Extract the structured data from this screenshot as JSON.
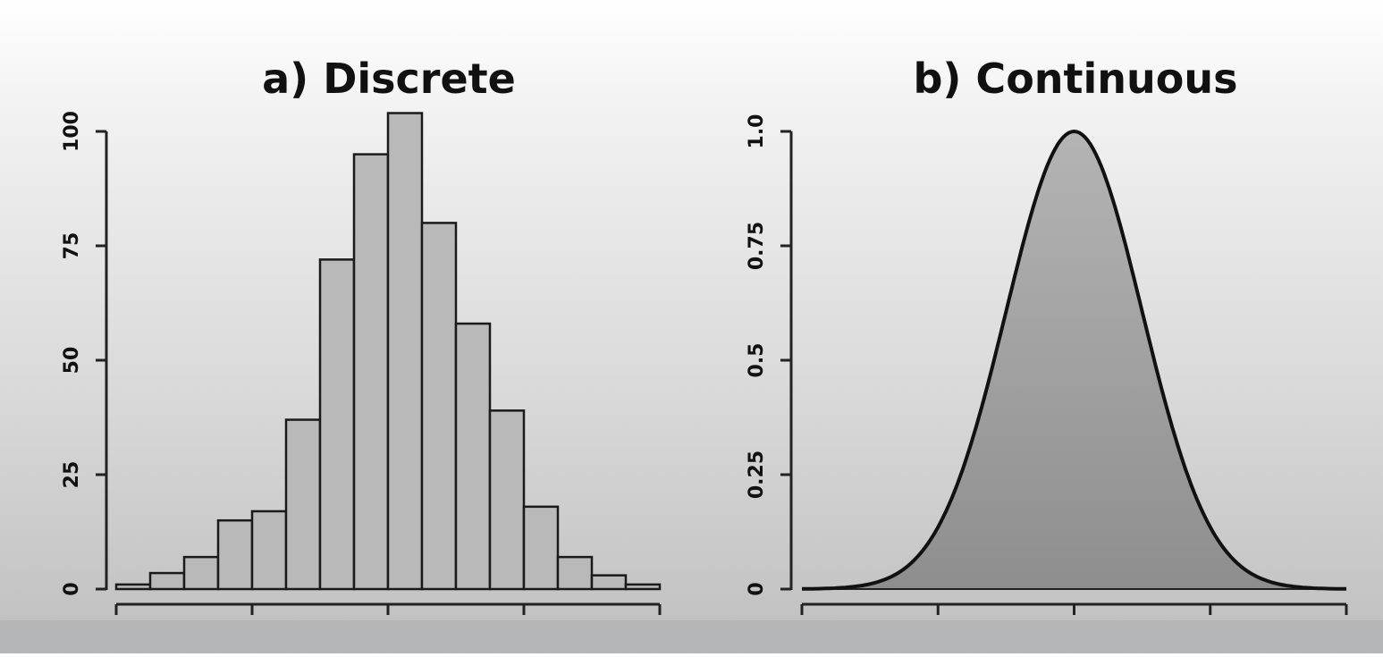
{
  "chart_data": [
    {
      "type": "bar",
      "title": "a) Discrete",
      "xlabel": "",
      "ylabel": "",
      "xlim": [
        -2,
        2
      ],
      "ylim": [
        0,
        100
      ],
      "x_ticks": [
        "-2",
        "-1",
        "0",
        "1",
        "2"
      ],
      "y_ticks": [
        "0",
        "25",
        "50",
        "75",
        "100"
      ],
      "bins": [
        {
          "x0": -2.0,
          "x1": -1.75,
          "value": 1
        },
        {
          "x0": -1.75,
          "x1": -1.5,
          "value": 3.5
        },
        {
          "x0": -1.5,
          "x1": -1.25,
          "value": 7
        },
        {
          "x0": -1.25,
          "x1": -1.0,
          "value": 15
        },
        {
          "x0": -1.0,
          "x1": -0.75,
          "value": 17
        },
        {
          "x0": -0.75,
          "x1": -0.5,
          "value": 37
        },
        {
          "x0": -0.5,
          "x1": -0.25,
          "value": 72
        },
        {
          "x0": -0.25,
          "x1": 0.0,
          "value": 95
        },
        {
          "x0": 0.0,
          "x1": 0.25,
          "value": 104
        },
        {
          "x0": 0.25,
          "x1": 0.5,
          "value": 80
        },
        {
          "x0": 0.5,
          "x1": 0.75,
          "value": 58
        },
        {
          "x0": 0.75,
          "x1": 1.0,
          "value": 39
        },
        {
          "x0": 1.0,
          "x1": 1.25,
          "value": 18
        },
        {
          "x0": 1.25,
          "x1": 1.5,
          "value": 7
        },
        {
          "x0": 1.5,
          "x1": 1.75,
          "value": 3
        },
        {
          "x0": 1.75,
          "x1": 2.0,
          "value": 1
        }
      ],
      "colors": {
        "fill": "#b9b9b9",
        "stroke": "#1a1a1a"
      }
    },
    {
      "type": "area",
      "title": "b) Continuous",
      "xlabel": "",
      "ylabel": "",
      "xlim": [
        -2,
        2
      ],
      "ylim": [
        0,
        1
      ],
      "x_ticks": [
        "-2",
        "-1",
        "0",
        "1",
        "2"
      ],
      "y_ticks": [
        "0",
        "0.25",
        "0.5",
        "0.75",
        "1.0"
      ],
      "curve": {
        "peak_x": 0,
        "peak_y": 1.0,
        "sigma": 0.5
      },
      "colors": {
        "fill_top": "#b4b4b4",
        "fill_bottom": "#8e8e8e",
        "stroke": "#111111"
      }
    }
  ]
}
